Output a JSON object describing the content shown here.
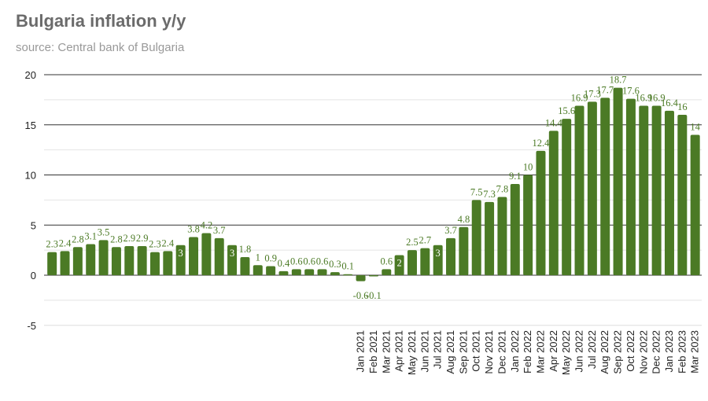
{
  "chart_data": {
    "type": "bar",
    "title": "Bulgaria inflation y/y",
    "subtitle": "source: Central bank of Bulgaria",
    "xlabel": "",
    "ylabel": "",
    "ylim": [
      -5,
      20
    ],
    "yticks": [
      -5,
      0,
      5,
      10,
      15,
      20
    ],
    "grid": true,
    "bar_color": "#4b7a25",
    "categories": [
      "",
      "",
      "",
      "",
      "",
      "",
      "",
      "",
      "",
      "",
      "",
      "",
      "",
      "",
      "",
      "",
      "",
      "",
      "",
      "",
      "",
      "",
      "",
      "",
      "Jan 2021",
      "Feb 2021",
      "Mar 2021",
      "Apr 2021",
      "May 2021",
      "Jun 2021",
      "Jul 2021",
      "Aug 2021",
      "Sep 2021",
      "Oct 2021",
      "Nov 2021",
      "Dec 2021",
      "Jan 2022",
      "Feb 2022",
      "Mar 2022",
      "Apr 2022",
      "May 2022",
      "Jun 2022",
      "Jul 2022",
      "Aug 2022",
      "Sep 2022",
      "Oct 2022",
      "Nov 2022",
      "Dec 2022",
      "Jan 2023",
      "Feb 2023",
      "Mar 2023"
    ],
    "values": [
      2.3,
      2.4,
      2.8,
      3.1,
      3.5,
      2.8,
      2.9,
      2.9,
      2.3,
      2.4,
      3,
      3.8,
      4.2,
      3.7,
      3,
      1.8,
      1,
      0.9,
      0.4,
      0.6,
      0.6,
      0.6,
      0.3,
      0.1,
      -0.6,
      -0.1,
      0.6,
      2,
      2.5,
      2.7,
      3,
      3.7,
      4.8,
      7.5,
      7.3,
      7.8,
      9.1,
      10,
      12.4,
      14.4,
      15.6,
      16.9,
      17.3,
      17.7,
      18.7,
      17.6,
      16.9,
      16.9,
      16.4,
      16,
      14
    ]
  }
}
